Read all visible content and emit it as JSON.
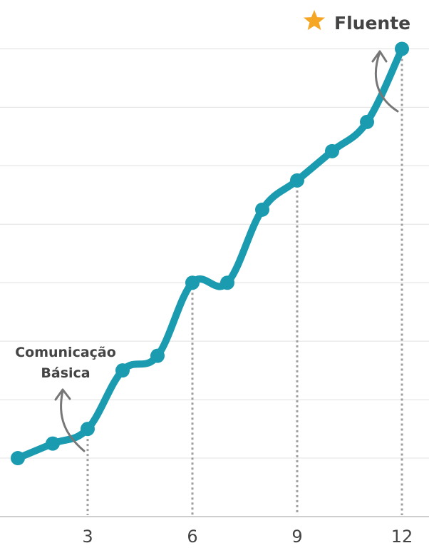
{
  "chart_data": {
    "type": "line",
    "title": "",
    "xlabel": "",
    "ylabel": "",
    "x": [
      1,
      2,
      3,
      4,
      5,
      6,
      7,
      8,
      9,
      10,
      11,
      12
    ],
    "series": [
      {
        "values": [
          0.5,
          1.0,
          1.5,
          3.5,
          4.0,
          6.5,
          6.5,
          9.0,
          10.0,
          11.0,
          12.0,
          14.5
        ]
      }
    ],
    "xticks": [
      "3",
      "6",
      "9",
      "12"
    ],
    "xlim": [
      0.5,
      12.5
    ],
    "ylim": [
      -1.5,
      15.0
    ],
    "grid": "horizontal",
    "colors": {
      "line": "#1a9bb0",
      "grid": "#e0e0e0",
      "guide": "#9e9e9e",
      "arrow": "#777777",
      "star": "#f5a623"
    },
    "annotations": [
      {
        "text_line1": "Comunicação",
        "text_line2": "Básica",
        "x": 3
      },
      {
        "text": "Fluente",
        "x": 12,
        "icon": "star-icon"
      }
    ]
  }
}
